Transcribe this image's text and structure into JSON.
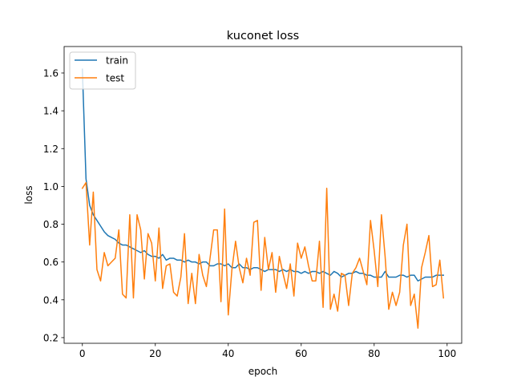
{
  "chart_data": {
    "type": "line",
    "title": "kuconet loss",
    "xlabel": "epoch",
    "ylabel": "loss",
    "xlim": [
      -5,
      104
    ],
    "ylim": [
      0.17,
      1.74
    ],
    "xticks": [
      0,
      20,
      40,
      60,
      80,
      100
    ],
    "yticks": [
      0.2,
      0.4,
      0.6,
      0.8,
      1.0,
      1.2,
      1.4,
      1.6
    ],
    "ytick_labels": [
      "0.2",
      "0.4",
      "0.6",
      "0.8",
      "1.0",
      "1.2",
      "1.4",
      "1.6"
    ],
    "grid": false,
    "legend_position": "upper-left",
    "series": [
      {
        "name": "train",
        "color": "#1f77b4",
        "x": [
          0,
          1,
          2,
          3,
          4,
          5,
          6,
          7,
          8,
          9,
          10,
          11,
          12,
          13,
          14,
          15,
          16,
          17,
          18,
          19,
          20,
          21,
          22,
          23,
          24,
          25,
          26,
          27,
          28,
          29,
          30,
          31,
          32,
          33,
          34,
          35,
          36,
          37,
          38,
          39,
          40,
          41,
          42,
          43,
          44,
          45,
          46,
          47,
          48,
          49,
          50,
          51,
          52,
          53,
          54,
          55,
          56,
          57,
          58,
          59,
          60,
          61,
          62,
          63,
          64,
          65,
          66,
          67,
          68,
          69,
          70,
          71,
          72,
          73,
          74,
          75,
          76,
          77,
          78,
          79,
          80,
          81,
          82,
          83,
          84,
          85,
          86,
          87,
          88,
          89,
          90,
          91,
          92,
          93,
          94,
          95,
          96,
          97,
          98,
          99
        ],
        "y": [
          1.62,
          1.04,
          0.9,
          0.85,
          0.82,
          0.79,
          0.76,
          0.74,
          0.73,
          0.72,
          0.7,
          0.69,
          0.69,
          0.68,
          0.67,
          0.66,
          0.65,
          0.66,
          0.64,
          0.63,
          0.63,
          0.62,
          0.64,
          0.61,
          0.62,
          0.62,
          0.61,
          0.61,
          0.6,
          0.61,
          0.6,
          0.6,
          0.59,
          0.6,
          0.6,
          0.58,
          0.58,
          0.59,
          0.59,
          0.58,
          0.59,
          0.57,
          0.57,
          0.59,
          0.57,
          0.57,
          0.56,
          0.57,
          0.57,
          0.56,
          0.55,
          0.56,
          0.56,
          0.56,
          0.55,
          0.56,
          0.55,
          0.56,
          0.55,
          0.55,
          0.54,
          0.55,
          0.54,
          0.55,
          0.55,
          0.54,
          0.55,
          0.54,
          0.53,
          0.55,
          0.54,
          0.52,
          0.53,
          0.54,
          0.54,
          0.55,
          0.54,
          0.54,
          0.53,
          0.53,
          0.52,
          0.52,
          0.52,
          0.55,
          0.52,
          0.52,
          0.52,
          0.53,
          0.53,
          0.52,
          0.53,
          0.53,
          0.5,
          0.51,
          0.52,
          0.52,
          0.52,
          0.53,
          0.53,
          0.53
        ]
      },
      {
        "name": "test",
        "color": "#ff7f0e",
        "x": [
          0,
          1,
          2,
          3,
          4,
          5,
          6,
          7,
          8,
          9,
          10,
          11,
          12,
          13,
          14,
          15,
          16,
          17,
          18,
          19,
          20,
          21,
          22,
          23,
          24,
          25,
          26,
          27,
          28,
          29,
          30,
          31,
          32,
          33,
          34,
          35,
          36,
          37,
          38,
          39,
          40,
          41,
          42,
          43,
          44,
          45,
          46,
          47,
          48,
          49,
          50,
          51,
          52,
          53,
          54,
          55,
          56,
          57,
          58,
          59,
          60,
          61,
          62,
          63,
          64,
          65,
          66,
          67,
          68,
          69,
          70,
          71,
          72,
          73,
          74,
          75,
          76,
          77,
          78,
          79,
          80,
          81,
          82,
          83,
          84,
          85,
          86,
          87,
          88,
          89,
          90,
          91,
          92,
          93,
          94,
          95,
          96,
          97,
          98,
          99
        ],
        "y": [
          0.99,
          1.02,
          0.69,
          0.97,
          0.56,
          0.5,
          0.65,
          0.58,
          0.6,
          0.62,
          0.77,
          0.43,
          0.41,
          0.85,
          0.41,
          0.85,
          0.77,
          0.51,
          0.75,
          0.7,
          0.5,
          0.78,
          0.46,
          0.58,
          0.59,
          0.44,
          0.42,
          0.52,
          0.75,
          0.38,
          0.54,
          0.38,
          0.64,
          0.53,
          0.47,
          0.62,
          0.77,
          0.77,
          0.39,
          0.88,
          0.32,
          0.56,
          0.71,
          0.57,
          0.49,
          0.62,
          0.53,
          0.81,
          0.82,
          0.45,
          0.73,
          0.56,
          0.65,
          0.44,
          0.63,
          0.54,
          0.46,
          0.59,
          0.42,
          0.7,
          0.62,
          0.68,
          0.58,
          0.5,
          0.5,
          0.71,
          0.36,
          0.99,
          0.35,
          0.43,
          0.34,
          0.54,
          0.53,
          0.37,
          0.54,
          0.57,
          0.62,
          0.55,
          0.48,
          0.82,
          0.66,
          0.47,
          0.85,
          0.63,
          0.35,
          0.44,
          0.37,
          0.44,
          0.69,
          0.8,
          0.37,
          0.43,
          0.25,
          0.57,
          0.65,
          0.74,
          0.47,
          0.48,
          0.61,
          0.41
        ]
      }
    ]
  }
}
